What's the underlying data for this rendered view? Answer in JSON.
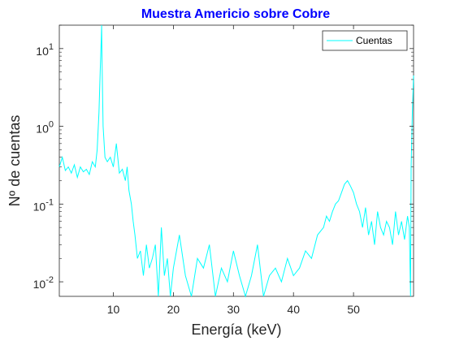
{
  "chart_data": {
    "type": "line",
    "title": "Muestra Americio sobre Cobre",
    "title_color": "#0000ff",
    "xlabel": "Energía (keV)",
    "ylabel": "Nº de cuentas",
    "xlim": [
      1,
      60
    ],
    "ylim": [
      0.0065,
      20
    ],
    "yscale": "log",
    "grid": false,
    "legend_position": "top-right",
    "x_ticks": [
      10,
      20,
      30,
      40,
      50
    ],
    "y_ticks": [
      {
        "value": 0.01,
        "base": "10",
        "exp": "-2"
      },
      {
        "value": 0.1,
        "base": "10",
        "exp": "-1"
      },
      {
        "value": 1,
        "base": "10",
        "exp": "0"
      },
      {
        "value": 10,
        "base": "10",
        "exp": "1"
      }
    ],
    "series": [
      {
        "name": "Cuentas",
        "color": "#00ffff",
        "x": [
          1.0,
          1.5,
          2.0,
          2.5,
          3.0,
          3.5,
          4.0,
          4.5,
          5.0,
          5.5,
          6.0,
          6.5,
          7.0,
          7.3,
          7.6,
          7.8,
          8.0,
          8.05,
          8.1,
          8.3,
          8.6,
          9.0,
          9.5,
          10.0,
          10.5,
          11.0,
          11.5,
          12.0,
          12.3,
          12.6,
          13.0,
          13.3,
          13.6,
          14.0,
          14.5,
          15.0,
          15.5,
          16.0,
          16.5,
          17.0,
          17.5,
          18.0,
          18.5,
          19.0,
          19.5,
          20.0,
          21.0,
          22.0,
          23.0,
          24.0,
          25.0,
          26.0,
          27.0,
          28.0,
          29.0,
          30.0,
          31.0,
          32.0,
          33.0,
          34.0,
          35.0,
          36.0,
          37.0,
          38.0,
          39.0,
          40.0,
          41.0,
          42.0,
          43.0,
          44.0,
          45.0,
          45.5,
          46.0,
          46.5,
          47.0,
          47.5,
          48.0,
          48.5,
          49.0,
          49.5,
          50.0,
          50.5,
          51.0,
          51.5,
          52.0,
          52.5,
          53.0,
          53.5,
          54.0,
          54.5,
          55.0,
          55.5,
          56.0,
          56.5,
          57.0,
          57.5,
          58.0,
          58.5,
          59.0,
          59.3,
          59.5,
          59.6,
          59.8,
          60.0
        ],
        "values": [
          0.3,
          0.4,
          0.27,
          0.3,
          0.25,
          0.32,
          0.22,
          0.3,
          0.26,
          0.28,
          0.24,
          0.35,
          0.3,
          0.5,
          1.5,
          5.0,
          14.0,
          20.0,
          8.0,
          1.0,
          0.4,
          0.35,
          0.4,
          0.3,
          0.6,
          0.25,
          0.28,
          0.2,
          0.3,
          0.15,
          0.1,
          0.06,
          0.04,
          0.02,
          0.025,
          0.012,
          0.03,
          0.015,
          0.02,
          0.03,
          0.0065,
          0.05,
          0.012,
          0.02,
          0.0065,
          0.015,
          0.04,
          0.012,
          0.0065,
          0.02,
          0.015,
          0.03,
          0.0065,
          0.015,
          0.01,
          0.025,
          0.012,
          0.0065,
          0.012,
          0.03,
          0.0065,
          0.012,
          0.015,
          0.01,
          0.02,
          0.012,
          0.015,
          0.025,
          0.02,
          0.04,
          0.05,
          0.07,
          0.06,
          0.08,
          0.1,
          0.11,
          0.14,
          0.18,
          0.2,
          0.17,
          0.14,
          0.1,
          0.08,
          0.05,
          0.09,
          0.04,
          0.06,
          0.03,
          0.08,
          0.05,
          0.04,
          0.06,
          0.05,
          0.03,
          0.08,
          0.04,
          0.06,
          0.035,
          0.07,
          0.05,
          0.0065,
          0.3,
          1.5,
          4.5
        ]
      }
    ]
  }
}
